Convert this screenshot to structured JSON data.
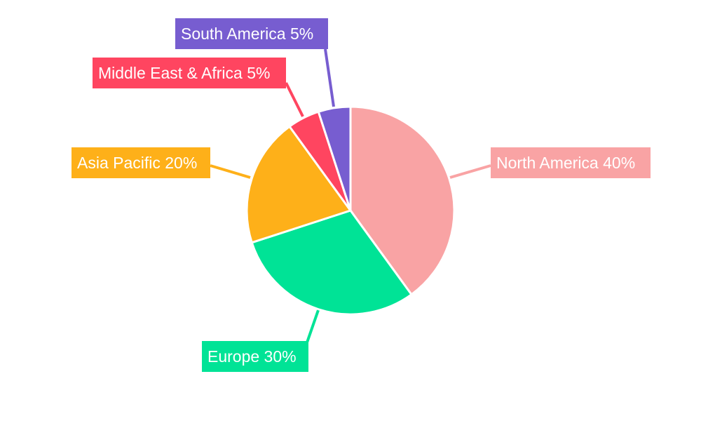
{
  "chart_data": {
    "type": "pie",
    "categories": [
      "North America",
      "Europe",
      "Asia Pacific",
      "Middle East & Africa",
      "South America"
    ],
    "values": [
      40,
      30,
      20,
      5,
      5
    ],
    "colors": [
      "#F9A3A4",
      "#00E396",
      "#FEB019",
      "#FF4560",
      "#775DD0"
    ],
    "data_labels": [
      "North America 40%",
      "Europe 30%",
      "Asia Pacific 20%",
      "Middle East & Africa 5%",
      "South America 5%"
    ],
    "start_angle": "top, clockwise",
    "legend": "none"
  }
}
